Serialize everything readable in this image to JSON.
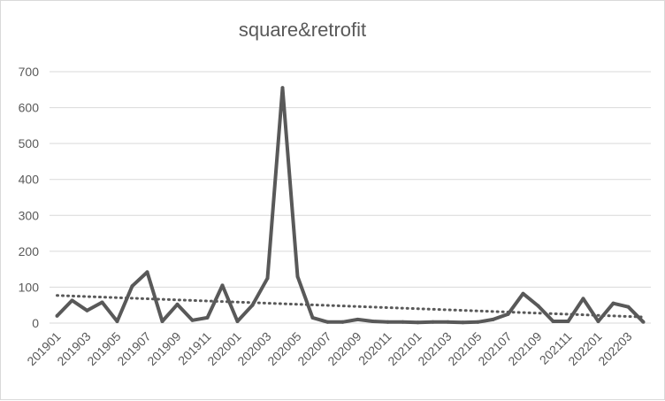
{
  "chart_data": {
    "type": "line",
    "title": "square&retrofit",
    "xlabel": "",
    "ylabel": "",
    "ylim": [
      0,
      700
    ],
    "yticks": [
      0,
      100,
      200,
      300,
      400,
      500,
      600,
      700
    ],
    "x": [
      "201901",
      "201902",
      "201903",
      "201904",
      "201905",
      "201906",
      "201907",
      "201908",
      "201909",
      "201910",
      "201911",
      "201912",
      "202001",
      "202002",
      "202003",
      "202004",
      "202005",
      "202006",
      "202007",
      "202008",
      "202009",
      "202010",
      "202011",
      "202012",
      "202101",
      "202102",
      "202103",
      "202104",
      "202105",
      "202106",
      "202107",
      "202108",
      "202109",
      "202110",
      "202111",
      "202112",
      "202201",
      "202202",
      "202203",
      "202204"
    ],
    "x_tick_labels": [
      "201901",
      "201903",
      "201905",
      "201907",
      "201909",
      "201911",
      "202001",
      "202003",
      "202005",
      "202007",
      "202009",
      "202011",
      "202101",
      "202103",
      "202105",
      "202107",
      "202109",
      "202111",
      "202201",
      "202203"
    ],
    "series": [
      {
        "values": [
          20,
          63,
          35,
          58,
          5,
          103,
          142,
          5,
          52,
          8,
          15,
          105,
          5,
          50,
          125,
          655,
          130,
          15,
          3,
          3,
          10,
          5,
          3,
          3,
          2,
          3,
          3,
          2,
          3,
          10,
          25,
          82,
          48,
          5,
          5,
          68,
          5,
          55,
          45,
          3
        ],
        "color": "#595959",
        "style": "solid"
      }
    ],
    "trendline": {
      "type": "linear",
      "start": 77,
      "end": 17,
      "color": "#595959",
      "style": "dotted"
    },
    "grid": true,
    "legend": "none"
  }
}
